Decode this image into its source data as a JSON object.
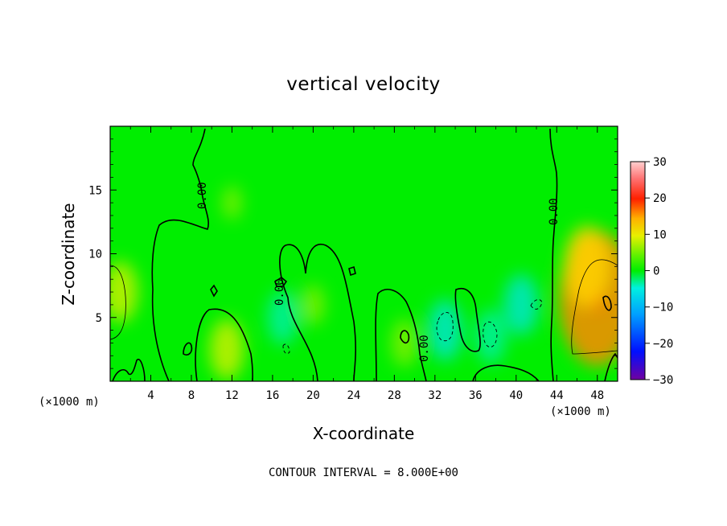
{
  "chart_data": {
    "type": "heatmap",
    "title": "vertical velocity",
    "xlabel": "X-coordinate",
    "ylabel": "Z-coordinate",
    "x_unit_left": "(×1000 m)",
    "x_unit_right": "(×1000 m)",
    "xlim": [
      0,
      50
    ],
    "ylim": [
      0,
      20
    ],
    "x_ticks": [
      4,
      8,
      12,
      16,
      20,
      24,
      28,
      32,
      36,
      40,
      44,
      48
    ],
    "y_ticks": [
      5,
      10,
      15
    ],
    "colorbar": {
      "range": [
        -30,
        30
      ],
      "ticks": [
        30,
        20,
        10,
        0,
        -10,
        -20,
        -30
      ],
      "tick_labels": [
        "30",
        "20",
        "10",
        "0",
        "−10",
        "−20",
        "−30"
      ],
      "colors": [
        "#7000a0",
        "#0010ff",
        "#00b0ff",
        "#00f0e0",
        "#00ee00",
        "#40f000",
        "#c8f000",
        "#ffe000",
        "#ff9000",
        "#ff3000",
        "#ff7070",
        "#ffc0c0"
      ]
    },
    "contour_interval_text": "CONTOUR INTERVAL = 8.000E+00",
    "zero_contour_labels": [
      "0.00",
      "0.00",
      "0.00",
      "0.00"
    ],
    "features": [
      {
        "x": 1,
        "z": 7,
        "w": 5
      },
      {
        "x": 11.5,
        "z": 2.5,
        "w": 5
      },
      {
        "x": 12,
        "z": 14,
        "w": 1
      },
      {
        "x": 20,
        "z": 6,
        "w": 2
      },
      {
        "x": 29,
        "z": 3,
        "w": 3
      },
      {
        "x": 17,
        "z": 5,
        "w": -4
      },
      {
        "x": 33,
        "z": 4,
        "w": -5
      },
      {
        "x": 37.5,
        "z": 3.5,
        "w": -4
      },
      {
        "x": 40.5,
        "z": 6,
        "w": -5
      },
      {
        "x": 48,
        "z": 6.5,
        "w": 16
      },
      {
        "x": 47,
        "z": 9,
        "w": 8
      }
    ]
  }
}
